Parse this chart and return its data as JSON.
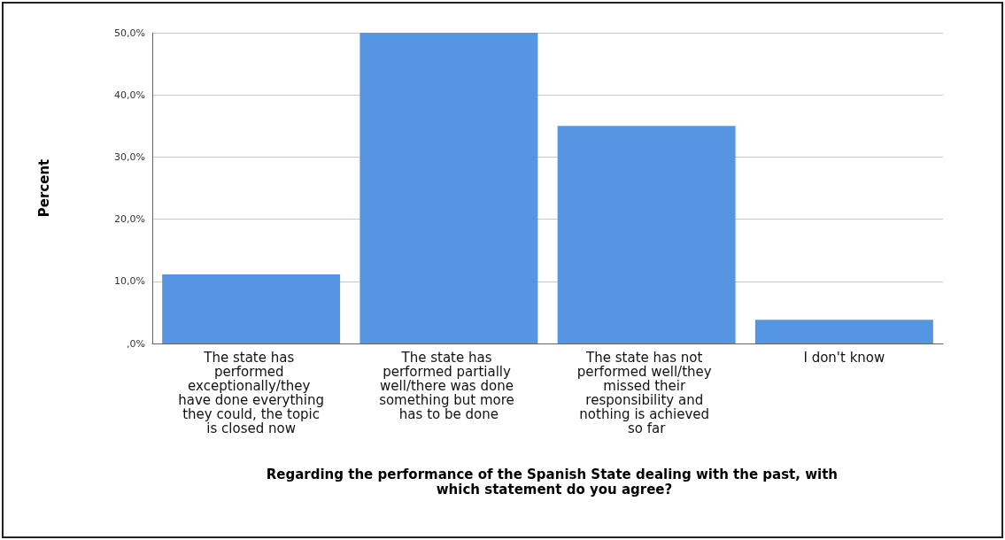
{
  "chart_data": {
    "type": "bar",
    "xlabel": "Regarding the performance of the Spanish State dealing with the past, with which statement do you agree?",
    "ylabel": "Percent",
    "categories": [
      "The state has performed exceptionally/they have done everything they could, the topic is closed now",
      "The state has performed partially well/there was done something but more has to be done",
      "The state has not performed well/they missed their responsibility and nothing is achieved so far",
      "I don't know"
    ],
    "values": [
      11.1,
      50,
      35,
      3.8
    ],
    "color": "#5595e2",
    "ylim": [
      0,
      50
    ],
    "yticks": [
      {
        "value": 0,
        "label": ",0%"
      },
      {
        "value": 10,
        "label": "10,0%"
      },
      {
        "value": 20,
        "label": "20,0%"
      },
      {
        "value": 30,
        "label": "30,0%"
      },
      {
        "value": 40,
        "label": "40,0%"
      },
      {
        "value": 50,
        "label": "50,0%"
      }
    ],
    "grid": "y"
  }
}
